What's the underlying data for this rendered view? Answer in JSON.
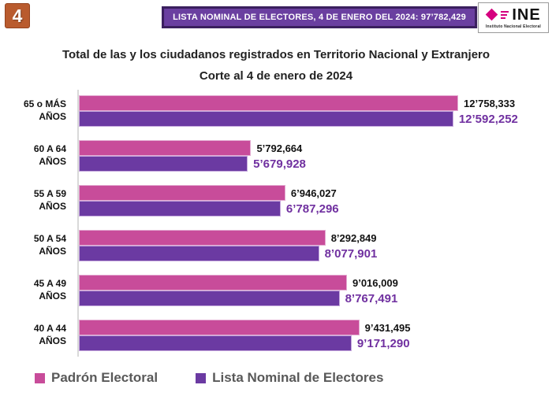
{
  "header": {
    "slide_number": "4",
    "banner_text": "LISTA NOMINAL DE ELECTORES, 4 DE ENERO DEL 2024: 97’782,429",
    "logo": {
      "brand": "INE",
      "caption": "Instituto Nacional Electoral"
    }
  },
  "titles": {
    "title": "Total de las y los ciudadanos registrados en Territorio Nacional y Extranjero",
    "subtitle": "Corte al 4 de enero de 2024"
  },
  "colors": {
    "padron_bar": "#C84C9A",
    "lista_bar": "#6B3AA2",
    "lista_value_text": "#7030A0",
    "banner_bg": "#6A3FA0",
    "banner_border": "#3A1F5E",
    "badge_bg": "#B95B2E",
    "logo_pink": "#D5007F",
    "legend_text": "#595959",
    "axis_line": "#D9D9D9"
  },
  "chart_data": {
    "type": "bar",
    "orientation": "horizontal",
    "title": "Total de las y los ciudadanos registrados en Territorio Nacional y Extranjero",
    "subtitle": "Corte al 4 de enero de 2024",
    "categories": [
      "65 o MÁS AÑOS",
      "60 A 64 AÑOS",
      "55 A 59 AÑOS",
      "50 A 54 AÑOS",
      "45 A 49 AÑOS",
      "40 A 44 AÑOS"
    ],
    "series": [
      {
        "name": "Padrón Electoral",
        "values": [
          12758333,
          5792664,
          6946027,
          8292849,
          9016009,
          9431495
        ]
      },
      {
        "name": "Lista Nominal de Electores",
        "values": [
          12592252,
          5679928,
          6787296,
          8077901,
          8767491,
          9171290
        ]
      }
    ],
    "xlim": [
      0,
      15700000
    ],
    "grid": false,
    "legend_position": "bottom",
    "groups": [
      {
        "label_line1": "65 o MÁS",
        "label_line2": "AÑOS",
        "padron": 12758333,
        "padron_label": "12’758,333",
        "lista": 12592252,
        "lista_label": "12’592,252"
      },
      {
        "label_line1": "60 A 64",
        "label_line2": "AÑOS",
        "padron": 5792664,
        "padron_label": "5’792,664",
        "lista": 5679928,
        "lista_label": "5’679,928"
      },
      {
        "label_line1": "55 A 59",
        "label_line2": "AÑOS",
        "padron": 6946027,
        "padron_label": "6’946,027",
        "lista": 6787296,
        "lista_label": "6’787,296"
      },
      {
        "label_line1": "50 A 54",
        "label_line2": "AÑOS",
        "padron": 8292849,
        "padron_label": "8’292,849",
        "lista": 8077901,
        "lista_label": "8’077,901"
      },
      {
        "label_line1": "45 A 49",
        "label_line2": "AÑOS",
        "padron": 9016009,
        "padron_label": "9’016,009",
        "lista": 8767491,
        "lista_label": "8’767,491"
      },
      {
        "label_line1": "40 A 44",
        "label_line2": "AÑOS",
        "padron": 9431495,
        "padron_label": "9’431,495",
        "lista": 9171290,
        "lista_label": "9’171,290"
      }
    ]
  },
  "legend": {
    "items": [
      {
        "label": "Padrón Electoral"
      },
      {
        "label": "Lista Nominal de Electores"
      }
    ]
  }
}
